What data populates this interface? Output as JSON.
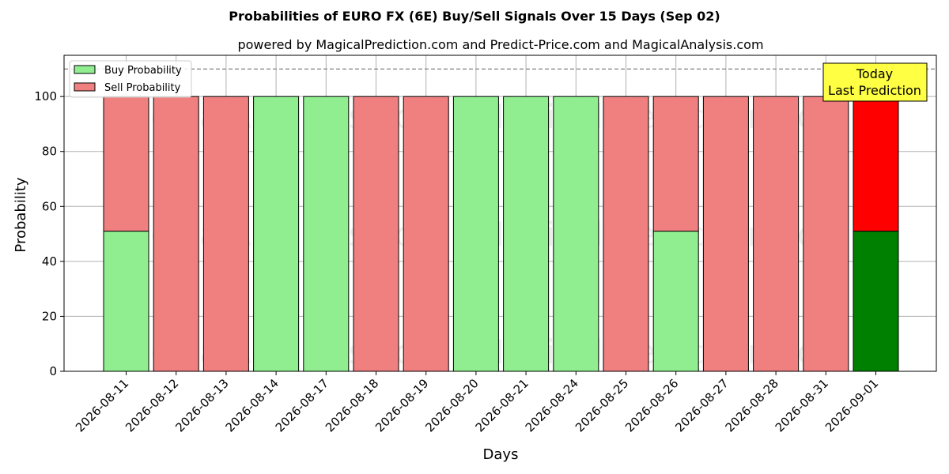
{
  "chart_data": {
    "type": "bar",
    "title": "Probabilities of EURO FX (6E) Buy/Sell Signals Over 15 Days (Sep 02)",
    "subtitle": "powered by MagicalPrediction.com and Predict-Price.com and MagicalAnalysis.com",
    "xlabel": "Days",
    "ylabel": "Probability",
    "ylim": [
      0,
      115
    ],
    "yticks": [
      0,
      20,
      40,
      60,
      80,
      100
    ],
    "grid": true,
    "legend_position": "top-left",
    "stacked": true,
    "categories": [
      "2026-08-11",
      "2026-08-12",
      "2026-08-13",
      "2026-08-14",
      "2026-08-17",
      "2026-08-18",
      "2026-08-19",
      "2026-08-20",
      "2026-08-21",
      "2026-08-24",
      "2026-08-25",
      "2026-08-26",
      "2026-08-27",
      "2026-08-28",
      "2026-08-31",
      "2026-09-01"
    ],
    "series": [
      {
        "name": "Buy Probability",
        "color": "#90EE90",
        "values": [
          51,
          0,
          0,
          100,
          100,
          0,
          0,
          100,
          100,
          100,
          0,
          51,
          0,
          0,
          0,
          51
        ]
      },
      {
        "name": "Sell Probability",
        "color": "#F08080",
        "values": [
          49,
          100,
          100,
          0,
          0,
          100,
          100,
          0,
          0,
          0,
          100,
          49,
          100,
          100,
          100,
          49
        ]
      }
    ],
    "highlight": {
      "index": 15,
      "buy_color": "#008000",
      "sell_color": "#FF0000"
    },
    "reference_line": {
      "y": 110,
      "style": "dashed",
      "color": "#808080"
    },
    "annotation": {
      "line1": "Today",
      "line2": "Last Prediction",
      "background": "#FFFF44"
    },
    "watermarks": [
      "MagicalAnalysis.com",
      "MagicalPrediction.com"
    ]
  }
}
